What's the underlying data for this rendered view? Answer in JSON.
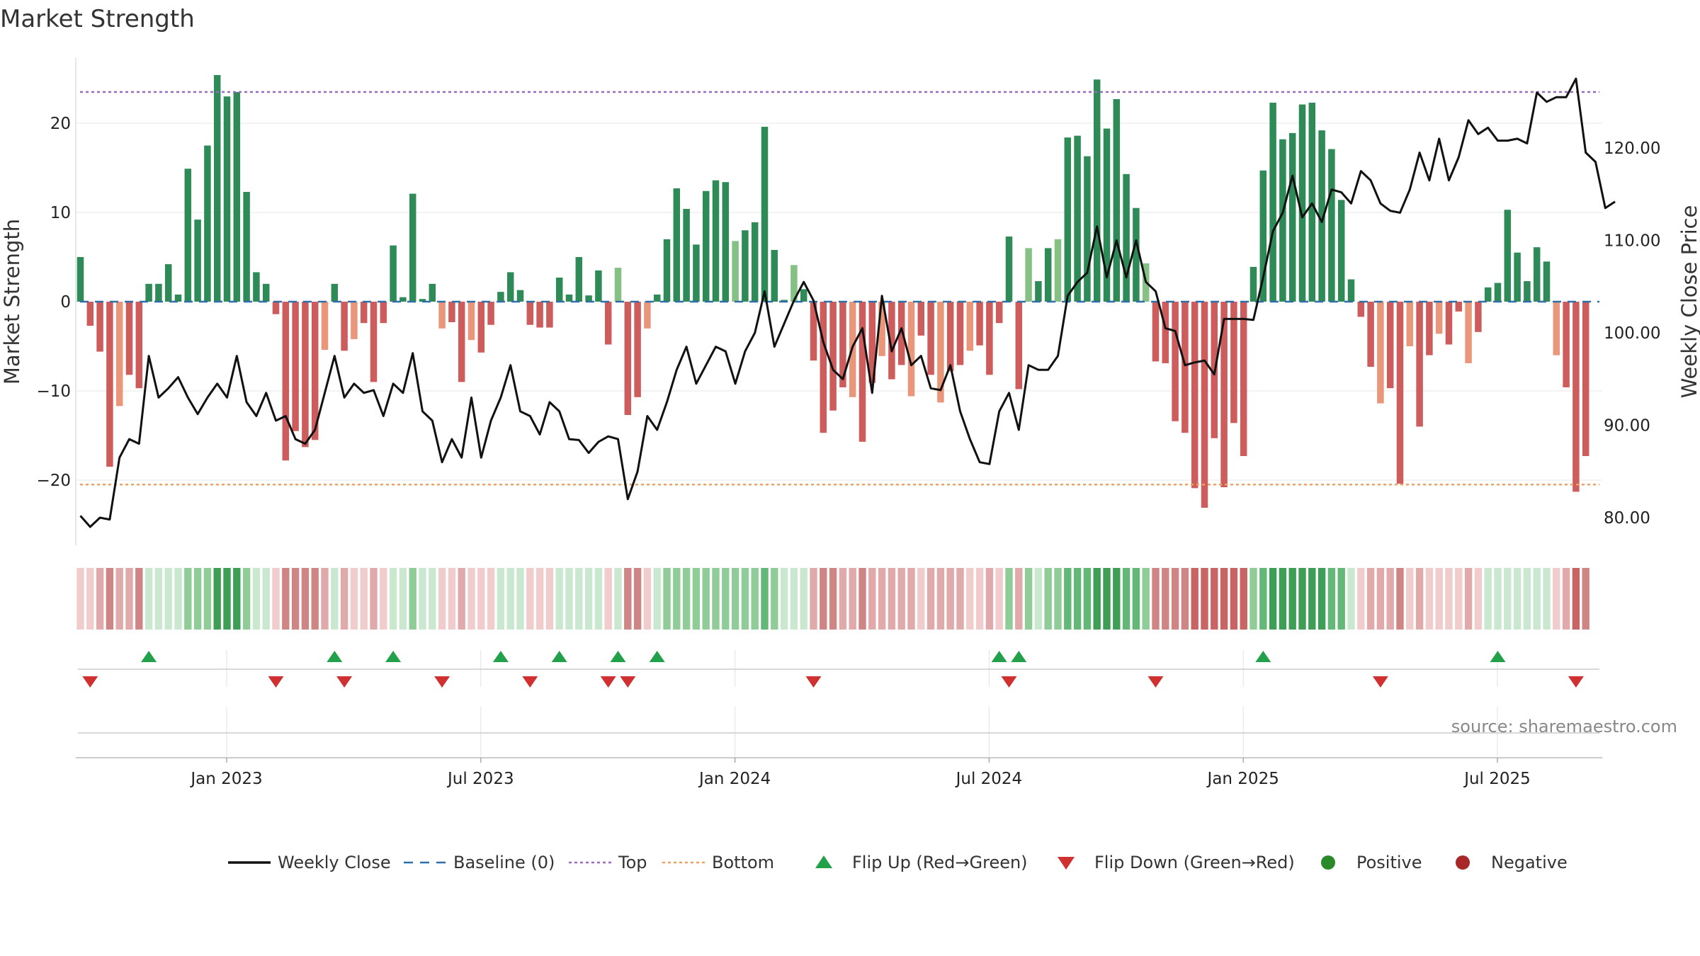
{
  "chart_data": {
    "type": "bar",
    "title": "Market Strength",
    "ylabel_left": "Market Strength",
    "ylabel_right": "Weekly Close Price",
    "source_text": "source: sharemaestro.com",
    "ylim_left": [
      -27,
      27
    ],
    "ylim_right": [
      77,
      128
    ],
    "yticks_left": [
      20,
      10,
      0,
      -10,
      -20
    ],
    "yticks_left_labels": [
      "20",
      "10",
      "0",
      "−10",
      "−20"
    ],
    "yticks_right": [
      120,
      110,
      100,
      90,
      80
    ],
    "yticks_right_labels": [
      "120.00",
      "110.00",
      "100.00",
      "90.00",
      "80.00"
    ],
    "top_level": 23.5,
    "bottom_level": -20.5,
    "date_ticks": [
      {
        "label": "Jan 2023",
        "week": 15
      },
      {
        "label": "Jul 2023",
        "week": 41
      },
      {
        "label": "Jan 2024",
        "week": 67
      },
      {
        "label": "Jul 2024",
        "week": 93
      },
      {
        "label": "Jan 2025",
        "week": 119
      },
      {
        "label": "Jul 2025",
        "week": 145
      }
    ],
    "strength": [
      5,
      -2.7,
      -5.6,
      -18.5,
      -11.7,
      -8.2,
      -9.7,
      2,
      2,
      4.2,
      0.8,
      14.9,
      9.2,
      17.5,
      25.4,
      23,
      23.5,
      12.3,
      3.3,
      2,
      -1.4,
      -17.8,
      -14.5,
      -16.3,
      -15.5,
      -5.4,
      2,
      -5.5,
      -4.2,
      -2.4,
      -9,
      -2.4,
      6.3,
      0.5,
      12.1,
      0.3,
      2,
      -3,
      -2.3,
      -9,
      -4.3,
      -5.7,
      -2.6,
      1.1,
      3.3,
      1.3,
      -2.6,
      -2.9,
      -2.9,
      2.7,
      0.8,
      5,
      0.7,
      3.5,
      -4.8,
      3.8,
      -12.7,
      -10.7,
      -3,
      0.8,
      7,
      12.7,
      10.4,
      6.4,
      12.4,
      13.6,
      13.4,
      6.8,
      8,
      8.9,
      19.6,
      5.8,
      0.2,
      4.1,
      1.4,
      -6.6,
      -14.7,
      -12.2,
      -9.6,
      -10.7,
      -15.7,
      -9.1,
      -6.1,
      -8.7,
      -7.1,
      -10.6,
      -3.8,
      -8.2,
      -11.3,
      -7.8,
      -7.1,
      -5.5,
      -4.9,
      -8.2,
      -2.4,
      7.3,
      -9.8,
      6,
      2.3,
      6,
      7,
      18.4,
      18.6,
      16.3,
      24.9,
      19.4,
      22.7,
      14.3,
      10.5,
      4.3,
      -6.7,
      -6.9,
      -13.4,
      -14.7,
      -20.9,
      -23.1,
      -15.3,
      -20.8,
      -13.6,
      -17.3,
      3.9,
      14.7,
      22.3,
      18.2,
      18.9,
      22.1,
      22.3,
      19.2,
      17.1,
      11.4,
      2.5,
      -1.7,
      -7.3,
      -11.4,
      -9.7,
      -20.4,
      -5,
      -14,
      -6,
      -3.6,
      -4.8,
      -1.1,
      -6.9,
      -3.4,
      1.6,
      2.1,
      10.3,
      5.5,
      2.3,
      6.1,
      4.5,
      -6,
      -9.6,
      -21.3,
      -17.3
    ],
    "close": [
      80.2,
      79,
      80,
      79.8,
      86.5,
      88.5,
      88,
      97.5,
      93,
      94,
      95.2,
      93,
      91.2,
      93,
      94.5,
      93,
      97.5,
      92.5,
      91,
      93.5,
      90.5,
      91,
      88.5,
      88,
      89.5,
      93.5,
      97.5,
      93,
      94.5,
      93.5,
      93.8,
      91,
      94.5,
      93.5,
      97.8,
      91.5,
      90.5,
      86,
      88.5,
      86.5,
      93,
      86.5,
      90.5,
      93,
      96.5,
      91.5,
      91,
      89,
      92.5,
      91.5,
      88.5,
      88.4,
      87,
      88.2,
      88.8,
      88.5,
      82,
      85,
      91,
      89.5,
      92.5,
      96,
      98.5,
      94.5,
      96.5,
      98.5,
      98,
      94.5,
      98,
      100,
      104.5,
      98.5,
      101,
      103.5,
      105.5,
      103.5,
      99,
      96,
      95,
      98.5,
      100.5,
      93.5,
      104,
      98,
      100.5,
      96.5,
      97.5,
      94,
      93.8,
      96.5,
      91.5,
      88.5,
      86,
      85.8,
      91.5,
      93.5,
      89.5,
      96.5,
      96,
      96,
      97.5,
      104,
      105.5,
      106.5,
      111.5,
      106,
      110,
      106,
      110,
      105.5,
      104.5,
      100.5,
      100.2,
      96.5,
      96.8,
      97,
      95.5,
      101.5,
      101.5,
      101.5,
      101.4,
      106,
      111,
      113,
      117,
      112.5,
      114,
      112,
      115.5,
      115.2,
      114,
      117.5,
      116.5,
      114,
      113.2,
      113,
      115.5,
      119.5,
      116.5,
      121,
      116.5,
      119,
      123,
      121.5,
      122.2,
      120.8,
      120.8,
      121,
      120.5,
      126,
      125,
      125.5,
      125.5,
      127.5,
      119.5,
      118.5,
      113.5,
      114.2
    ],
    "heat_levels": [
      -1,
      -1,
      -2,
      -3,
      -2,
      -2,
      -3,
      1,
      1,
      1,
      1,
      2,
      2,
      2,
      4,
      4,
      4,
      2,
      1,
      1,
      -1,
      -3,
      -3,
      -3,
      -3,
      -2,
      1,
      -2,
      -1,
      -1,
      -2,
      -1,
      1,
      1,
      2,
      1,
      1,
      -1,
      -1,
      -2,
      -1,
      -1,
      -1,
      1,
      1,
      1,
      -1,
      -1,
      -1,
      1,
      1,
      1,
      1,
      1,
      -1,
      1,
      -3,
      -3,
      -1,
      1,
      2,
      2,
      2,
      2,
      2,
      2,
      2,
      2,
      2,
      2,
      3,
      2,
      1,
      1,
      1,
      -2,
      -3,
      -3,
      -2,
      -2,
      -3,
      -2,
      -2,
      -2,
      -2,
      -2,
      -1,
      -2,
      -2,
      -2,
      -2,
      -1,
      -1,
      -2,
      -1,
      2,
      -2,
      2,
      1,
      2,
      2,
      3,
      3,
      3,
      4,
      4,
      4,
      3,
      3,
      2,
      -3,
      -3,
      -3,
      -3,
      -4,
      -4,
      -4,
      -4,
      -4,
      -4,
      2,
      3,
      4,
      4,
      4,
      4,
      4,
      4,
      3,
      3,
      1,
      -1,
      -2,
      -2,
      -2,
      -3,
      -1,
      -2,
      -1,
      -1,
      -1,
      -1,
      -2,
      -1,
      1,
      1,
      1,
      1,
      1,
      1,
      1,
      -1,
      -2,
      -4,
      -3
    ],
    "flip_up_weeks": [
      7,
      26,
      32,
      43,
      49,
      55,
      59,
      94,
      96,
      121,
      145
    ],
    "flip_down_weeks": [
      1,
      20,
      27,
      37,
      46,
      54,
      56,
      75,
      95,
      110,
      133,
      153
    ],
    "legend": [
      {
        "type": "line",
        "label": "Weekly Close",
        "color": "#111111"
      },
      {
        "type": "dash",
        "label": "Baseline (0)",
        "color": "#2e6fa8"
      },
      {
        "type": "dot",
        "label": "Top",
        "color": "#9b6ac4"
      },
      {
        "type": "dot",
        "label": "Bottom",
        "color": "#f0a060"
      },
      {
        "type": "tri-up",
        "label": "Flip Up (Red→Green)",
        "color": "#22a04a"
      },
      {
        "type": "tri-down",
        "label": "Flip Down (Green→Red)",
        "color": "#d03030"
      },
      {
        "type": "circle",
        "label": "Positive",
        "color": "#2a8a2a"
      },
      {
        "type": "circle",
        "label": "Negative",
        "color": "#a82828"
      }
    ],
    "colors": {
      "pos_strong": "#2e8b57",
      "pos_light": "#85c185",
      "neg_strong": "#cd5c5c",
      "neg_light": "#e9967a",
      "close_line": "#111111",
      "baseline": "#2e6fa8",
      "top_line": "#9b6ac4",
      "bottom_line": "#f0a060"
    }
  }
}
